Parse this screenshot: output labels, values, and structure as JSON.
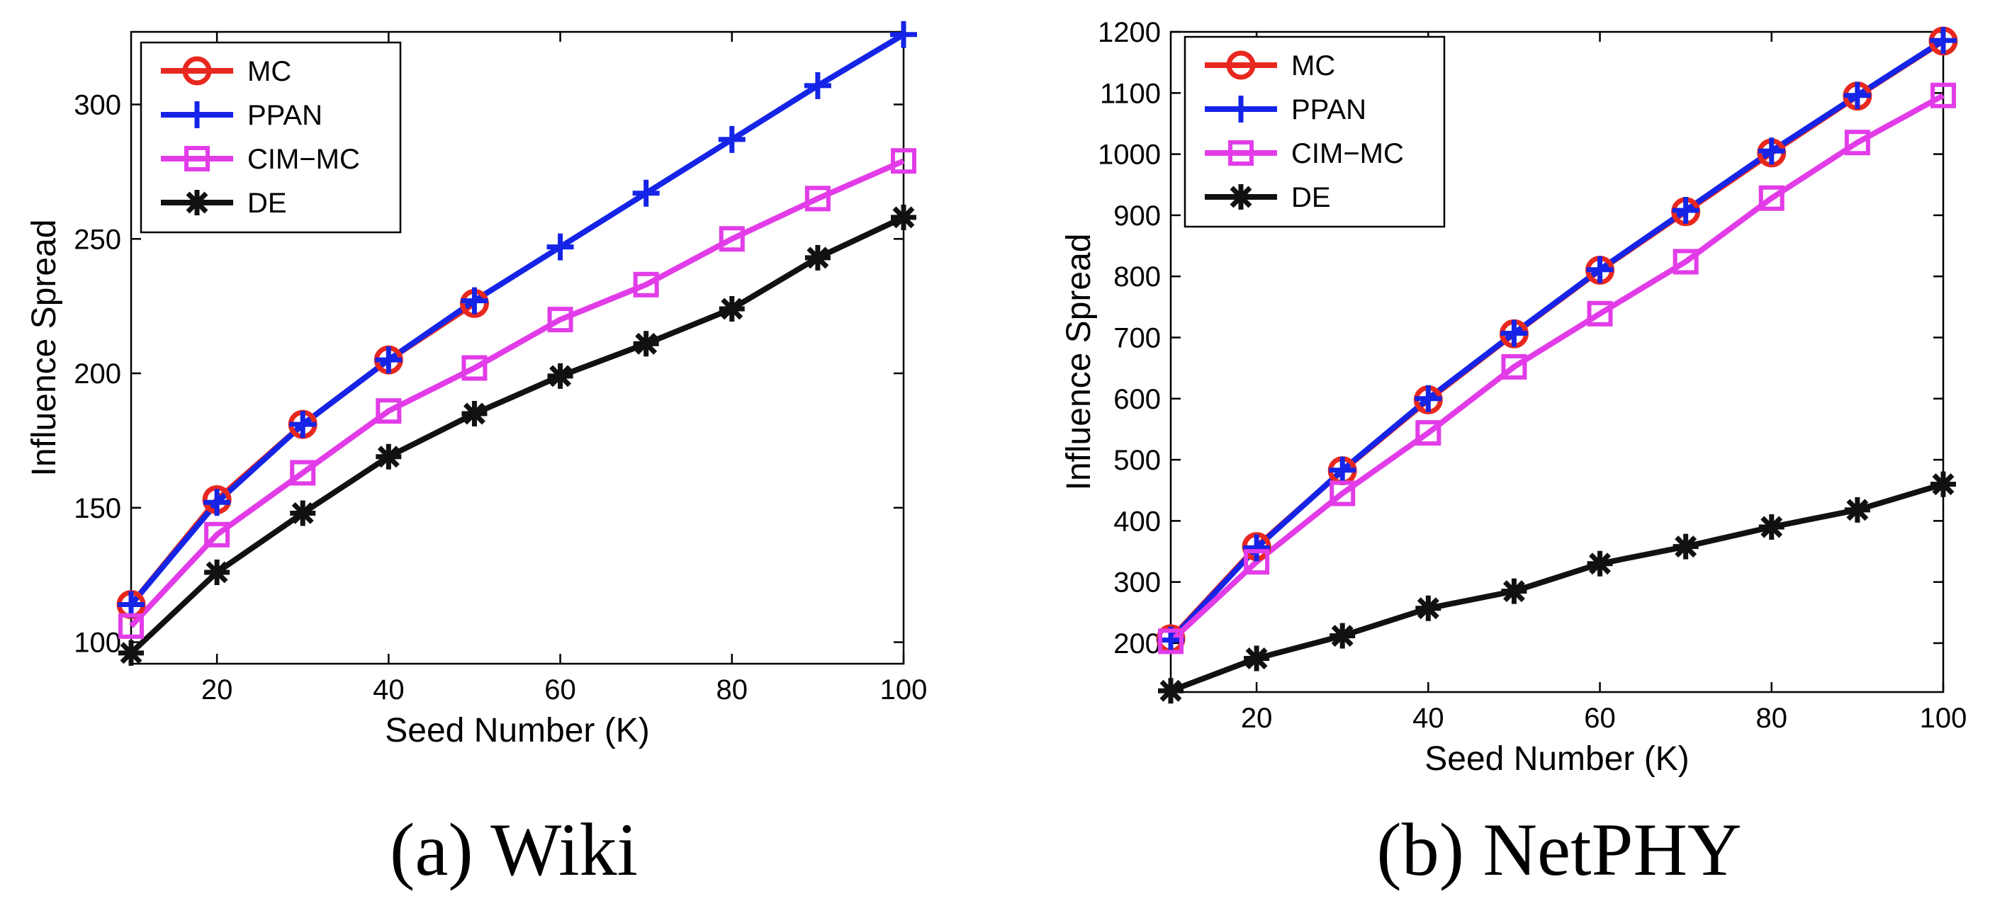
{
  "chart_data": [
    {
      "type": "line",
      "caption": "(a) Wiki",
      "xlabel": "Seed Number (K)",
      "ylabel": "Influence Spread",
      "xlim": [
        10,
        100
      ],
      "ylim": [
        92,
        327
      ],
      "xticks": [
        20,
        40,
        60,
        80,
        100
      ],
      "yticks": [
        100,
        150,
        200,
        250,
        300
      ],
      "grid": false,
      "legend_position": "top-left",
      "x": [
        10,
        20,
        30,
        40,
        50,
        60,
        70,
        80,
        90,
        100
      ],
      "series": [
        {
          "name": "MC",
          "color": "#e8281e",
          "marker": "circle",
          "values": [
            114,
            153,
            181,
            205,
            226,
            null,
            null,
            null,
            null,
            null
          ]
        },
        {
          "name": "PPAN",
          "color": "#1524e6",
          "marker": "plus",
          "values": [
            114,
            152,
            181,
            205,
            227,
            247,
            267,
            287,
            307,
            326
          ]
        },
        {
          "name": "CIM−MC",
          "color": "#e23ce8",
          "marker": "square",
          "values": [
            106,
            140,
            163,
            186,
            202,
            220,
            233,
            250,
            265,
            279
          ]
        },
        {
          "name": "DE",
          "color": "#111111",
          "marker": "asterisk",
          "values": [
            96,
            126,
            148,
            169,
            185,
            199,
            211,
            224,
            243,
            258
          ]
        }
      ]
    },
    {
      "type": "line",
      "caption": "(b) NetPHY",
      "xlabel": "Seed Number (K)",
      "ylabel": "Influence Spread",
      "xlim": [
        10,
        100
      ],
      "ylim": [
        120,
        1200
      ],
      "xticks": [
        20,
        40,
        60,
        80,
        100
      ],
      "yticks": [
        200,
        300,
        400,
        500,
        600,
        700,
        800,
        900,
        1000,
        1100,
        1200
      ],
      "grid": false,
      "legend_position": "top-left",
      "x": [
        10,
        20,
        30,
        40,
        50,
        60,
        70,
        80,
        90,
        100
      ],
      "series": [
        {
          "name": "MC",
          "color": "#e8281e",
          "marker": "circle",
          "values": [
            207,
            358,
            482,
            598,
            706,
            810,
            906,
            1002,
            1095,
            1185
          ]
        },
        {
          "name": "PPAN",
          "color": "#1524e6",
          "marker": "plus",
          "values": [
            205,
            356,
            483,
            600,
            707,
            811,
            908,
            1005,
            1096,
            1186
          ]
        },
        {
          "name": "CIM−MC",
          "color": "#e23ce8",
          "marker": "square",
          "values": [
            203,
            333,
            445,
            544,
            652,
            739,
            824,
            928,
            1019,
            1096
          ]
        },
        {
          "name": "DE",
          "color": "#111111",
          "marker": "asterisk",
          "values": [
            122,
            175,
            212,
            257,
            285,
            330,
            358,
            390,
            418,
            460
          ]
        }
      ]
    }
  ]
}
